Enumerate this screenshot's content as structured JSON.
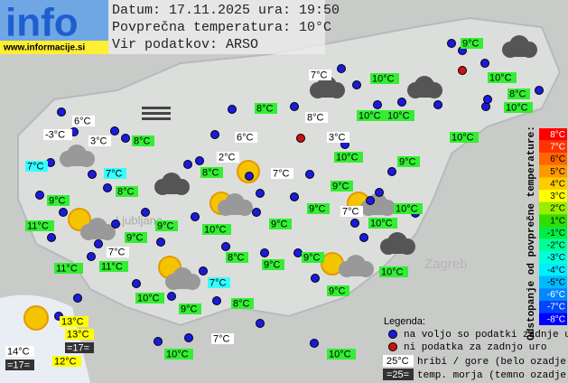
{
  "header": {
    "logo": "info",
    "url": "www.informacije.si",
    "date_line": "Datum: 17.11.2025 ura: 19:50",
    "avg_line": "Povprečna temperatura: 10°C",
    "source_line": "Vir podatkov: ARSO"
  },
  "places": [
    "Ljubljana",
    "Zagreb"
  ],
  "stations": [
    {
      "label": "9°C",
      "color": "#33ee33"
    },
    {
      "label": "7°C",
      "color": "#ffffff"
    },
    {
      "label": "10°C",
      "color": "#33ee33"
    },
    {
      "label": "10°C",
      "color": "#33ee33"
    },
    {
      "label": "8°C",
      "color": "#33ee33"
    },
    {
      "label": "8°C",
      "color": "#33ee33"
    },
    {
      "label": "8°C",
      "color": "#ffffff"
    },
    {
      "label": "10°C",
      "color": "#33ee33"
    },
    {
      "label": "10°C",
      "color": "#33ee33"
    },
    {
      "label": "10°C",
      "color": "#33ee33"
    },
    {
      "label": "10°C",
      "color": "#33ee33"
    },
    {
      "label": "6°C",
      "color": "#ffffff"
    },
    {
      "label": "-3°C",
      "color": "#ffffff"
    },
    {
      "label": "3°C",
      "color": "#ffffff"
    },
    {
      "label": "8°C",
      "color": "#33ee33"
    },
    {
      "label": "6°C",
      "color": "#ffffff"
    },
    {
      "label": "3°C",
      "color": "#ffffff"
    },
    {
      "label": "10°C",
      "color": "#33ee33"
    },
    {
      "label": "2°C",
      "color": "#ffffff"
    },
    {
      "label": "9°C",
      "color": "#33ee33"
    },
    {
      "label": "7°C",
      "color": "#33ffff"
    },
    {
      "label": "7°C",
      "color": "#33ffff"
    },
    {
      "label": "7°C",
      "color": "#ffffff"
    },
    {
      "label": "8°C",
      "color": "#33ee33"
    },
    {
      "label": "8°C",
      "color": "#33ee33"
    },
    {
      "label": "9°C",
      "color": "#33ee33"
    },
    {
      "label": "9°C",
      "color": "#33ee33"
    },
    {
      "label": "9°C",
      "color": "#33ee33"
    },
    {
      "label": "7°C",
      "color": "#ffffff"
    },
    {
      "label": "10°C",
      "color": "#33ee33"
    },
    {
      "label": "10°C",
      "color": "#33ee33"
    },
    {
      "label": "11°C",
      "color": "#33ee33"
    },
    {
      "label": "9°C",
      "color": "#33ee33"
    },
    {
      "label": "9°C",
      "color": "#33ee33"
    },
    {
      "label": "10°C",
      "color": "#33ee33"
    },
    {
      "label": "9°C",
      "color": "#33ee33"
    },
    {
      "label": "7°C",
      "color": "#ffffff"
    },
    {
      "label": "8°C",
      "color": "#33ee33"
    },
    {
      "label": "9°C",
      "color": "#33ee33"
    },
    {
      "label": "9°C",
      "color": "#33ee33"
    },
    {
      "label": "11°C",
      "color": "#33ee33"
    },
    {
      "label": "11°C",
      "color": "#33ee33"
    },
    {
      "label": "10°C",
      "color": "#33ee33"
    },
    {
      "label": "7°C",
      "color": "#33ffff"
    },
    {
      "label": "10°C",
      "color": "#33ee33"
    },
    {
      "label": "9°C",
      "color": "#33ee33"
    },
    {
      "label": "9°C",
      "color": "#33ee33"
    },
    {
      "label": "8°C",
      "color": "#33ee33"
    },
    {
      "label": "7°C",
      "color": "#ffffff"
    },
    {
      "label": "10°C",
      "color": "#33ee33"
    },
    {
      "label": "10°C",
      "color": "#33ee33"
    },
    {
      "label": "13°C",
      "color": "#ffff00"
    },
    {
      "label": "13°C",
      "color": "#ffff00"
    },
    {
      "label": "=17=",
      "color": "#333333"
    },
    {
      "label": "14°C",
      "color": "#ffffff"
    },
    {
      "label": "=17=",
      "color": "#333333"
    },
    {
      "label": "12°C",
      "color": "#ffff00"
    }
  ],
  "scale": {
    "title": "Odstopanje od povprečne temperature:",
    "steps": [
      {
        "label": "8°C",
        "color": "#ff0000"
      },
      {
        "label": "7°C",
        "color": "#ff3300"
      },
      {
        "label": "6°C",
        "color": "#ff6600"
      },
      {
        "label": "5°C",
        "color": "#ff9900"
      },
      {
        "label": "4°C",
        "color": "#ffcc00"
      },
      {
        "label": "3°C",
        "color": "#ffff00"
      },
      {
        "label": "2°C",
        "color": "#99ee00"
      },
      {
        "label": "1°C",
        "color": "#33dd00"
      },
      {
        "label": "-1°C",
        "color": "#00ee44"
      },
      {
        "label": "-2°C",
        "color": "#00ff99"
      },
      {
        "label": "-3°C",
        "color": "#00ffdd"
      },
      {
        "label": "-4°C",
        "color": "#00eeff"
      },
      {
        "label": "-5°C",
        "color": "#00bbff"
      },
      {
        "label": "-6°C",
        "color": "#0088ff"
      },
      {
        "label": "-7°C",
        "color": "#0044ff"
      },
      {
        "label": "-8°C",
        "color": "#0000ff"
      }
    ]
  },
  "legend": {
    "title": "Legenda:",
    "available": "na voljo so podatki zadnje ure",
    "missing": "ni podatka za zadnjo uro",
    "mountain_sample": "25°C",
    "mountain_text": "hribi / gore (belo ozadje)",
    "sea_sample": "=25=",
    "sea_text": "temp. morja (temno ozadje)"
  }
}
